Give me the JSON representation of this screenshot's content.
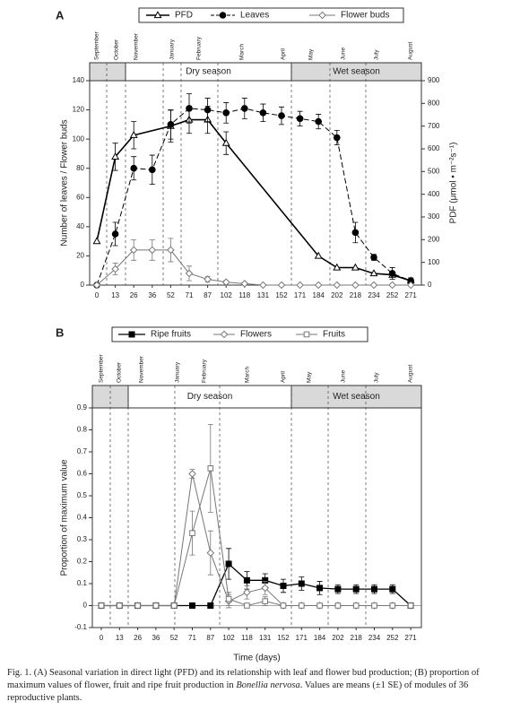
{
  "chart_data": [
    {
      "type": "line",
      "panel": "A",
      "months": [
        "September",
        "October",
        "November",
        "January",
        "February",
        "March",
        "April",
        "May",
        "June",
        "July",
        "August"
      ],
      "seasons": [
        "Dry season",
        "Wet season"
      ],
      "categories": [
        0,
        13,
        26,
        36,
        52,
        71,
        87,
        102,
        118,
        131,
        152,
        171,
        184,
        202,
        218,
        234,
        252,
        271
      ],
      "ylabel": "Number of leaves / Flower buds",
      "y2label": "PDF (μmol • m⁻²s⁻¹)",
      "ylim": [
        0,
        140
      ],
      "yticks": [
        0,
        20,
        40,
        60,
        80,
        100,
        120,
        140
      ],
      "y2lim": [
        0,
        900
      ],
      "y2ticks": [
        0,
        100,
        200,
        300,
        400,
        500,
        600,
        700,
        800,
        900
      ],
      "series": [
        {
          "name": "PFD",
          "color": "#000000",
          "axis": "y2",
          "marker": "triangle-open",
          "width": 1.6,
          "x": [
            0,
            13,
            26,
            52,
            71,
            87,
            102,
            184,
            202,
            218,
            234,
            252,
            271
          ],
          "values": [
            193,
            565,
            660,
            700,
            728,
            728,
            625,
            128,
            77,
            77,
            51,
            45,
            19
          ],
          "errors": [
            null,
            60,
            60,
            70,
            60,
            60,
            50,
            null,
            null,
            null,
            null,
            null,
            null
          ]
        },
        {
          "name": "Leaves",
          "color": "#000000",
          "marker": "circle",
          "dash": true,
          "width": 1,
          "values": [
            0,
            35,
            80,
            79,
            110,
            121,
            120,
            118,
            121,
            118,
            116,
            114,
            112,
            101,
            36,
            19,
            8,
            3
          ],
          "errors": [
            0,
            8,
            8,
            10,
            10,
            10,
            8,
            7,
            7,
            6,
            6,
            5,
            5,
            5,
            7,
            2,
            4,
            2
          ]
        },
        {
          "name": "Flower buds",
          "color": "#777777",
          "marker": "diamond-open",
          "width": 1,
          "values": [
            0,
            11,
            24,
            24,
            24,
            8,
            4,
            2,
            1,
            0,
            0,
            0,
            0,
            0,
            0,
            0,
            0,
            0
          ],
          "errors": [
            0,
            4,
            7,
            7,
            8,
            5,
            2,
            1,
            0.5,
            0,
            0,
            0,
            0,
            0,
            0,
            0,
            0,
            0
          ]
        }
      ]
    },
    {
      "type": "line",
      "panel": "B",
      "months": [
        "September",
        "October",
        "November",
        "January",
        "February",
        "March",
        "April",
        "May",
        "June",
        "July",
        "August"
      ],
      "seasons": [
        "Dry season",
        "Wet season"
      ],
      "categories": [
        0,
        13,
        26,
        36,
        52,
        71,
        87,
        102,
        118,
        131,
        152,
        171,
        184,
        202,
        218,
        234,
        252,
        271
      ],
      "xlabel": "Time (days)",
      "ylabel": "Proportion of maximum value",
      "ylim": [
        -0.1,
        0.9
      ],
      "yticks": [
        -0.1,
        0,
        0.1,
        0.2,
        0.3,
        0.4,
        0.5,
        0.6,
        0.7,
        0.8,
        0.9
      ],
      "series": [
        {
          "name": "Ripe fruits",
          "color": "#000000",
          "marker": "square",
          "width": 1.3,
          "values": [
            0,
            0,
            0,
            0,
            0,
            0,
            0,
            0.19,
            0.115,
            0.115,
            0.09,
            0.1,
            0.08,
            0.075,
            0.075,
            0.075,
            0.075,
            0
          ],
          "errors": [
            0,
            0,
            0,
            0,
            0,
            0,
            0,
            0.07,
            0.04,
            0.03,
            0.03,
            0.03,
            0.03,
            0.02,
            0.02,
            0.02,
            0.02,
            0
          ]
        },
        {
          "name": "Flowers",
          "color": "#777777",
          "marker": "diamond-open",
          "width": 1,
          "values": [
            0,
            0,
            0,
            0,
            0,
            0.6,
            0.24,
            0.02,
            0.06,
            0.08,
            0,
            0,
            0,
            0,
            0,
            0,
            0,
            0
          ],
          "errors": [
            0,
            0,
            0,
            0,
            0,
            0.02,
            0.1,
            0.03,
            0.03,
            0.03,
            0,
            0,
            0,
            0,
            0,
            0,
            0,
            0
          ]
        },
        {
          "name": "Fruits",
          "color": "#777777",
          "marker": "square-open",
          "width": 1,
          "values": [
            0,
            0,
            0,
            0,
            0,
            0.33,
            0.625,
            0.03,
            0,
            0.02,
            0,
            0,
            0,
            0,
            0,
            0,
            0,
            0
          ],
          "errors": [
            0,
            0,
            0,
            0,
            0,
            0.1,
            0.2,
            0.03,
            0,
            0.02,
            0,
            0,
            0,
            0,
            0,
            0,
            0,
            0
          ]
        }
      ]
    }
  ],
  "caption": {
    "before": "Fig. 1. (A) Seasonal variation in direct light (PFD) and its relationship with leaf and flower bud production; (B) proportion of maximum values of flower, fruit and ripe fruit production in ",
    "species": "Bonellia nervosa",
    "after": ". Values are means (±1 SE) of modules of 36 reproductive plants."
  }
}
